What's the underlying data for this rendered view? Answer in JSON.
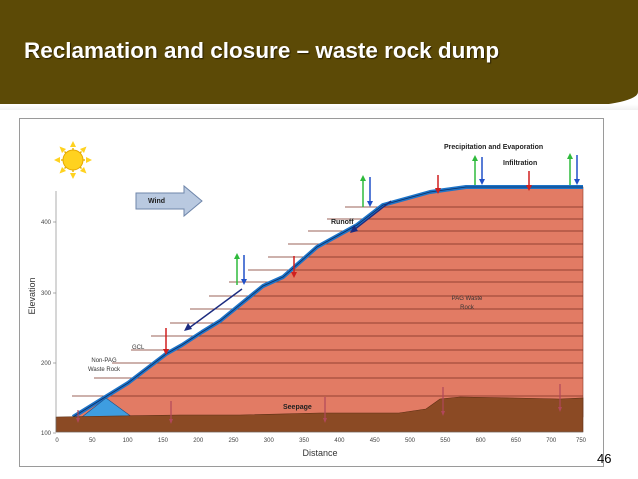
{
  "slide": {
    "title": "Reclamation and closure – waste rock dump",
    "page_number": "46"
  },
  "diagram": {
    "x_axis": {
      "label": "Distance",
      "ticks": [
        "0",
        "50",
        "100",
        "150",
        "200",
        "250",
        "300",
        "350",
        "400",
        "450",
        "500",
        "550",
        "600",
        "650",
        "700",
        "750"
      ]
    },
    "y_axis": {
      "label": "Elevation",
      "ticks": [
        "100",
        "200",
        "300",
        "400"
      ]
    },
    "labels": {
      "wind": "Wind",
      "runoff": "Runoff",
      "precip_evap": "Precipitation and Evaporation",
      "infiltration": "Infiltration",
      "gcl": "GCL",
      "non_pag_line1": "Non-PAG",
      "non_pag_line2": "Waste Rock",
      "pag_line1": "PAG Waste",
      "pag_line2": "Rock",
      "seepage": "Seepage"
    },
    "colors": {
      "pag_rock": "#e27b64",
      "ground": "#8b4a24",
      "cover": "#1e74c8",
      "non_pag": "#3e9de0",
      "arrow_red": "#d01f1f",
      "arrow_green": "#2fba3c",
      "arrow_blue": "#2050c8",
      "wind_arrow": "#9fb4d2",
      "sun": "#ffd21f"
    }
  }
}
